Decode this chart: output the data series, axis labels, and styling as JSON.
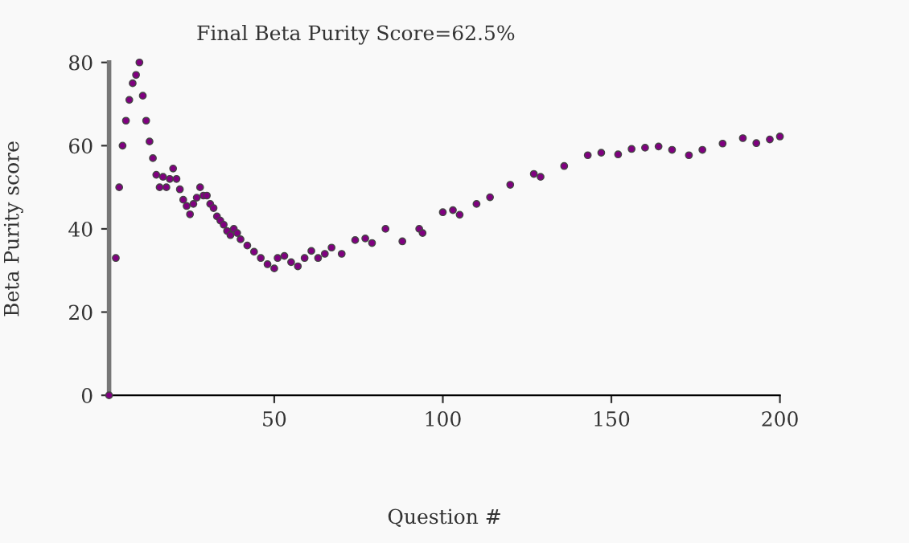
{
  "chart_data": {
    "type": "scatter",
    "title": "Final Beta Purity Score=62.5%",
    "xlabel": "Question #",
    "ylabel": "Beta Purity score",
    "x": [
      1,
      3,
      4,
      5,
      6,
      7,
      8,
      9,
      10,
      11,
      12,
      13,
      14,
      15,
      16,
      17,
      18,
      19,
      20,
      21,
      22,
      23,
      24,
      25,
      26,
      27,
      28,
      29,
      30,
      31,
      32,
      33,
      34,
      35,
      36,
      37,
      38,
      39,
      40,
      42,
      44,
      46,
      48,
      50,
      51,
      53,
      55,
      57,
      59,
      61,
      63,
      65,
      67,
      70,
      74,
      77,
      79,
      83,
      88,
      93,
      94,
      100,
      103,
      105,
      110,
      114,
      120,
      127,
      129,
      136,
      143,
      147,
      152,
      156,
      160,
      164,
      168,
      173,
      177,
      183,
      189,
      193,
      197,
      200
    ],
    "series": [
      {
        "color": "#800080",
        "values": [
          0,
          33,
          50,
          60,
          66,
          71,
          75,
          77,
          80,
          72,
          66,
          61,
          57,
          53,
          50,
          52.5,
          50,
          52,
          54.5,
          52,
          49.5,
          47,
          45.5,
          43.5,
          46,
          47.5,
          50,
          48,
          48,
          46,
          45,
          43,
          42,
          41,
          39.5,
          38.5,
          40,
          39,
          37.5,
          36,
          34.5,
          33,
          31.5,
          30.5,
          33,
          33.5,
          32,
          31,
          33,
          34.7,
          33,
          34,
          35.5,
          34,
          37.3,
          37.7,
          36.6,
          40,
          37,
          40,
          39,
          44,
          44.5,
          43.4,
          46,
          47.6,
          50.6,
          53.2,
          52.5,
          55.1,
          57.7,
          58.3,
          57.9,
          59.2,
          59.5,
          59.8,
          59,
          57.7,
          59,
          60.5,
          61.8,
          60.6,
          61.5,
          62.2
        ]
      }
    ],
    "xlim": [
      1,
      200
    ],
    "xticks": [
      50,
      100,
      150,
      200
    ],
    "ylim": [
      0,
      80
    ],
    "yticks": [
      0,
      20,
      40,
      60,
      80
    ],
    "grid": false,
    "legend": false,
    "marker": "circle"
  }
}
